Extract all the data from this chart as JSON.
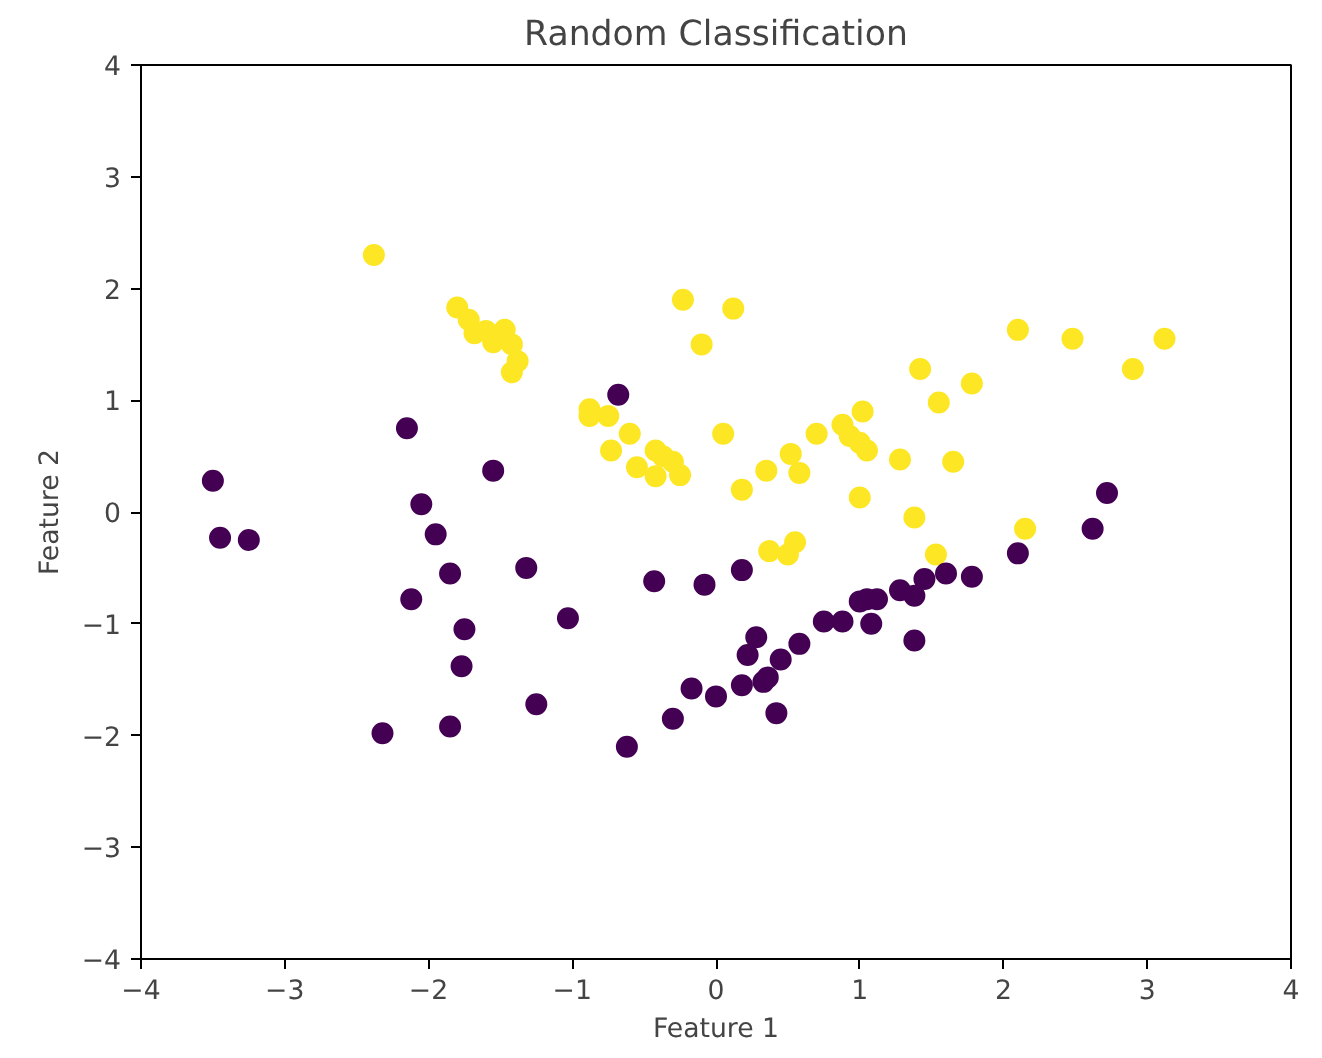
{
  "chart_data": {
    "type": "scatter",
    "title": "Random Classification",
    "xlabel": "Feature 1",
    "ylabel": "Feature 2",
    "xlim": [
      -4,
      4
    ],
    "ylim": [
      -4,
      4
    ],
    "xticks": [
      {
        "value": -4,
        "label": "−4"
      },
      {
        "value": -3,
        "label": "−3"
      },
      {
        "value": -2,
        "label": "−2"
      },
      {
        "value": -1,
        "label": "−1"
      },
      0,
      1,
      2,
      3,
      4
    ],
    "yticks": [
      {
        "value": -4,
        "label": "−4"
      },
      {
        "value": -3,
        "label": "−3"
      },
      {
        "value": -2,
        "label": "−2"
      },
      {
        "value": -1,
        "label": "−1"
      },
      0,
      1,
      2,
      3,
      4
    ],
    "grid": false,
    "marker": "circle",
    "series": [
      {
        "color": "#fde725",
        "x": [
          -2.38,
          -1.8,
          -1.72,
          -1.68,
          -1.6,
          -1.55,
          -1.47,
          -1.42,
          -1.38,
          -1.42,
          -0.23,
          0.12,
          -0.1,
          -0.88,
          -0.88,
          -0.75,
          -0.73,
          -0.6,
          -0.55,
          -0.42,
          -0.37,
          -0.3,
          -0.42,
          -0.25,
          0.05,
          0.18,
          0.35,
          0.37,
          0.5,
          0.55,
          0.52,
          0.58,
          0.7,
          0.88,
          0.93,
          1.0,
          1.02,
          1.05,
          1.0,
          1.28,
          1.38,
          1.42,
          1.53,
          1.55,
          1.65,
          1.78,
          2.1,
          2.15,
          2.48,
          2.9,
          3.12
        ],
        "values": [
          2.3,
          1.83,
          1.72,
          1.6,
          1.62,
          1.52,
          1.63,
          1.5,
          1.35,
          1.25,
          1.9,
          1.82,
          1.5,
          0.92,
          0.86,
          0.86,
          0.55,
          0.7,
          0.4,
          0.55,
          0.5,
          0.45,
          0.32,
          0.33,
          0.7,
          0.2,
          0.37,
          -0.35,
          -0.38,
          -0.27,
          0.52,
          0.35,
          0.7,
          0.78,
          0.68,
          0.62,
          0.9,
          0.55,
          0.13,
          0.47,
          -0.05,
          1.28,
          -0.38,
          0.98,
          0.45,
          1.15,
          1.63,
          -0.15,
          1.55,
          1.28,
          1.55
        ]
      },
      {
        "color": "#440154",
        "x": [
          -3.5,
          -3.45,
          -3.25,
          -2.15,
          -2.05,
          -1.95,
          -1.85,
          -2.12,
          -1.75,
          -1.77,
          -1.85,
          -2.32,
          -1.55,
          -1.32,
          -1.25,
          -1.03,
          -0.68,
          -0.62,
          -0.43,
          -0.3,
          -0.17,
          -0.08,
          0.0,
          0.18,
          0.18,
          0.22,
          0.28,
          0.33,
          0.36,
          0.42,
          0.45,
          0.58,
          0.75,
          0.88,
          1.0,
          1.05,
          1.08,
          1.12,
          1.28,
          1.38,
          1.38,
          1.45,
          1.6,
          1.78,
          2.1,
          2.62,
          2.72
        ],
        "values": [
          0.28,
          -0.23,
          -0.25,
          0.75,
          0.07,
          -0.2,
          -0.55,
          -0.78,
          -1.05,
          -1.38,
          -1.92,
          -1.98,
          0.37,
          -0.5,
          -1.72,
          -0.95,
          1.05,
          -2.1,
          -0.62,
          -1.85,
          -1.58,
          -0.65,
          -1.65,
          -0.52,
          -1.55,
          -1.28,
          -1.12,
          -1.52,
          -1.48,
          -1.8,
          -1.32,
          -1.18,
          -0.98,
          -0.98,
          -0.8,
          -0.78,
          -1.0,
          -0.78,
          -0.7,
          -0.75,
          -1.15,
          -0.6,
          -0.55,
          -0.58,
          -0.37,
          -0.15,
          0.17
        ]
      }
    ]
  }
}
